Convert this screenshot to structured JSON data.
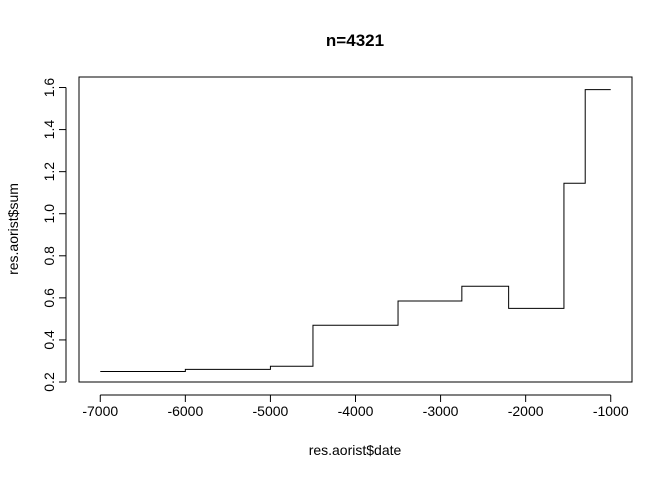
{
  "chart_data": {
    "type": "line",
    "step": true,
    "title": "n=4321",
    "xlabel": "res.aorist$date",
    "ylabel": "res.aorist$sum",
    "xlim": [
      -7250,
      -750
    ],
    "ylim": [
      0.2,
      1.65
    ],
    "xticks": [
      -7000,
      -6000,
      -5000,
      -4000,
      -3000,
      -2000,
      -1000
    ],
    "xtick_labels": [
      "-7000",
      "-6000",
      "-5000",
      "-4000",
      "-3000",
      "-2000",
      "-1000"
    ],
    "yticks": [
      0.2,
      0.4,
      0.6,
      0.8,
      1.0,
      1.2,
      1.4,
      1.6
    ],
    "ytick_labels": [
      "0.2",
      "0.4",
      "0.6",
      "0.8",
      "1.0",
      "1.2",
      "1.4",
      "1.6"
    ],
    "grid": false,
    "legend": "none",
    "line_color": "#000000",
    "series": [
      {
        "x": [
          -7000,
          -6000,
          -5000,
          -4500,
          -3500,
          -2750,
          -2200,
          -1550,
          -1300,
          -1000
        ],
        "y": [
          0.25,
          0.26,
          0.275,
          0.47,
          0.585,
          0.655,
          0.55,
          1.145,
          1.59,
          1.59
        ]
      }
    ]
  }
}
